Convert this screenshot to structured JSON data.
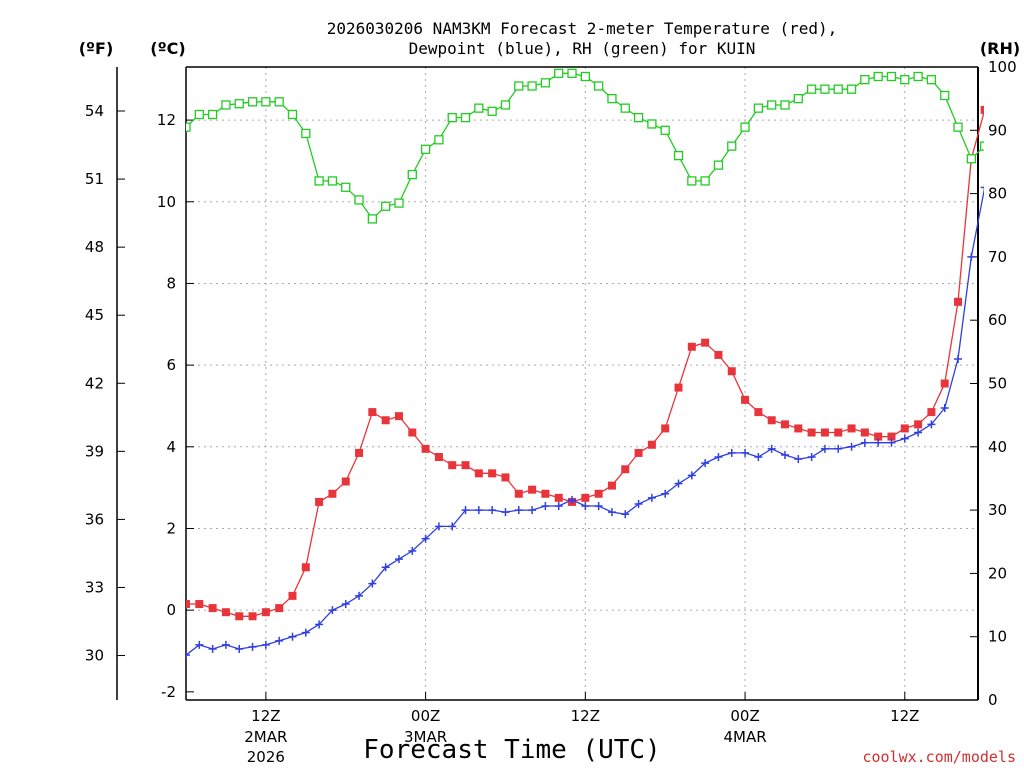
{
  "chart_data": {
    "type": "line",
    "title_line1": "2026030206 NAM3KM Forecast 2-meter Temperature (red),",
    "title_line2": "Dewpoint (blue), RH (green) for KUIN",
    "xlabel": "Forecast Time (UTC)",
    "credit": "coolwx.com/models",
    "units": {
      "fahrenheit": "(ºF)",
      "celsius": "(ºC)",
      "rh": "(RH)"
    },
    "x_ticks": [
      {
        "hour": 6,
        "label": "12Z",
        "date": "2MAR",
        "year": "2026"
      },
      {
        "hour": 18,
        "label": "00Z",
        "date": "3MAR",
        "year": ""
      },
      {
        "hour": 30,
        "label": "12Z",
        "date": "",
        "year": ""
      },
      {
        "hour": 42,
        "label": "00Z",
        "date": "4MAR",
        "year": ""
      },
      {
        "hour": 54,
        "label": "12Z",
        "date": "",
        "year": ""
      }
    ],
    "xlim": [
      0,
      59.5
    ],
    "ylim_c": [
      -2.2,
      13.3
    ],
    "y_ticks_c": [
      -2,
      0,
      2,
      4,
      6,
      8,
      10,
      12
    ],
    "y_ticks_f": [
      30,
      33,
      36,
      39,
      42,
      45,
      48,
      51,
      54
    ],
    "ylim_rh": [
      0,
      100
    ],
    "y_ticks_rh": [
      0,
      10,
      20,
      30,
      40,
      50,
      60,
      70,
      80,
      90,
      100
    ],
    "colors": {
      "temperature": "#e8353b",
      "dewpoint": "#2f3fe0",
      "rh": "#22cc22",
      "grid": "#aaaaaa"
    },
    "series": [
      {
        "name": "Temperature (°C)",
        "marker": "filled-square",
        "axis": "celsius",
        "x": [
          0,
          1,
          2,
          3,
          4,
          5,
          6,
          7,
          8,
          9,
          10,
          11,
          12,
          13,
          14,
          15,
          16,
          17,
          18,
          19,
          20,
          21,
          22,
          23,
          24,
          25,
          26,
          27,
          28,
          29,
          30,
          31,
          32,
          33,
          34,
          35,
          36,
          37,
          38,
          39,
          40,
          41,
          42,
          43,
          44,
          45,
          46,
          47,
          48,
          49,
          50,
          51,
          52,
          53,
          54,
          55,
          56,
          57,
          58,
          59,
          60
        ],
        "values": [
          0.15,
          0.15,
          0.05,
          -0.05,
          -0.15,
          -0.15,
          -0.05,
          0.05,
          0.35,
          1.05,
          2.65,
          2.85,
          3.15,
          3.85,
          4.85,
          4.65,
          4.75,
          4.35,
          3.95,
          3.75,
          3.55,
          3.55,
          3.35,
          3.35,
          3.25,
          2.85,
          2.95,
          2.85,
          2.75,
          2.65,
          2.75,
          2.85,
          3.05,
          3.45,
          3.85,
          4.05,
          4.45,
          5.45,
          6.45,
          6.55,
          6.25,
          5.85,
          5.15,
          4.85,
          4.65,
          4.55,
          4.45,
          4.35,
          4.35,
          4.35,
          4.45,
          4.35,
          4.25,
          4.25,
          4.45,
          4.55,
          4.85,
          5.55,
          7.55,
          11.05,
          12.25
        ]
      },
      {
        "name": "Dewpoint (°C)",
        "marker": "plus",
        "axis": "celsius",
        "x": [
          0,
          1,
          2,
          3,
          4,
          5,
          6,
          7,
          8,
          9,
          10,
          11,
          12,
          13,
          14,
          15,
          16,
          17,
          18,
          19,
          20,
          21,
          22,
          23,
          24,
          25,
          26,
          27,
          28,
          29,
          30,
          31,
          32,
          33,
          34,
          35,
          36,
          37,
          38,
          39,
          40,
          41,
          42,
          43,
          44,
          45,
          46,
          47,
          48,
          49,
          50,
          51,
          52,
          53,
          54,
          55,
          56,
          57,
          58,
          59,
          60
        ],
        "values": [
          -1.1,
          -0.85,
          -0.95,
          -0.85,
          -0.95,
          -0.9,
          -0.85,
          -0.75,
          -0.65,
          -0.55,
          -0.35,
          0.0,
          0.15,
          0.35,
          0.65,
          1.05,
          1.25,
          1.45,
          1.75,
          2.05,
          2.05,
          2.45,
          2.45,
          2.45,
          2.4,
          2.45,
          2.45,
          2.55,
          2.55,
          2.7,
          2.55,
          2.55,
          2.4,
          2.35,
          2.6,
          2.75,
          2.85,
          3.1,
          3.3,
          3.6,
          3.75,
          3.85,
          3.85,
          3.75,
          3.95,
          3.8,
          3.7,
          3.75,
          3.95,
          3.95,
          4.0,
          4.1,
          4.1,
          4.1,
          4.2,
          4.35,
          4.55,
          4.95,
          6.15,
          8.65,
          10.35
        ]
      },
      {
        "name": "RH (%)",
        "marker": "open-square",
        "axis": "rh",
        "x": [
          0,
          1,
          2,
          3,
          4,
          5,
          6,
          7,
          8,
          9,
          10,
          11,
          12,
          13,
          14,
          15,
          16,
          17,
          18,
          19,
          20,
          21,
          22,
          23,
          24,
          25,
          26,
          27,
          28,
          29,
          30,
          31,
          32,
          33,
          34,
          35,
          36,
          37,
          38,
          39,
          40,
          41,
          42,
          43,
          44,
          45,
          46,
          47,
          48,
          49,
          50,
          51,
          52,
          53,
          54,
          55,
          56,
          57,
          58,
          59,
          60
        ],
        "values": [
          90.5,
          92.5,
          92.5,
          94,
          94.2,
          94.5,
          94.5,
          94.5,
          92.5,
          89.5,
          82,
          82,
          81,
          79,
          76,
          78,
          78.5,
          83,
          87,
          88.5,
          92,
          92,
          93.5,
          93,
          94,
          97,
          97,
          97.5,
          99,
          99,
          98.5,
          97,
          95,
          93.5,
          92,
          91,
          90,
          86,
          82,
          82,
          84.5,
          87.5,
          90.5,
          93.5,
          94,
          94,
          95,
          96.5,
          96.5,
          96.5,
          96.5,
          98,
          98.5,
          98.5,
          98,
          98.5,
          98,
          95.5,
          90.5,
          85.5,
          87.5
        ]
      }
    ]
  }
}
